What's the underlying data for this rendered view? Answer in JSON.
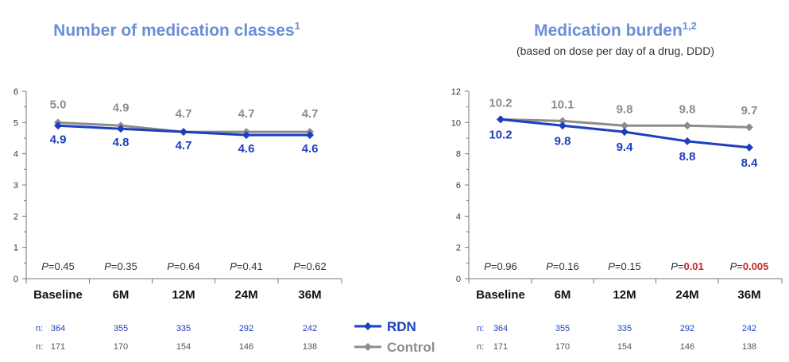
{
  "chart_data": [
    {
      "type": "line",
      "title": "Number of medication classes",
      "title_superscript": "1",
      "subtitle": "",
      "categories": [
        "Baseline",
        "6M",
        "12M",
        "24M",
        "36M"
      ],
      "ylim": [
        0,
        6
      ],
      "yticks": [
        "0",
        "1",
        "2",
        "3",
        "4",
        "5",
        "6"
      ],
      "series": [
        {
          "name": "RDN",
          "values": [
            4.9,
            4.8,
            4.7,
            4.6,
            4.6
          ],
          "labels": [
            "4.9",
            "4.8",
            "4.7",
            "4.6",
            "4.6"
          ]
        },
        {
          "name": "Control",
          "values": [
            5.0,
            4.9,
            4.7,
            4.7,
            4.7
          ],
          "labels": [
            "5.0",
            "4.9",
            "4.7",
            "4.7",
            "4.7"
          ]
        }
      ],
      "p_values": [
        {
          "prefix": "P",
          "value": "=0.45",
          "significant": false
        },
        {
          "prefix": "P",
          "value": "=0.35",
          "significant": false
        },
        {
          "prefix": "P",
          "value": "=0.64",
          "significant": false
        },
        {
          "prefix": "P",
          "value": "=0.41",
          "significant": false
        },
        {
          "prefix": "P",
          "value": "=0.62",
          "significant": false
        }
      ],
      "n_rdn": [
        "364",
        "355",
        "335",
        "292",
        "242"
      ],
      "n_control": [
        "171",
        "170",
        "154",
        "146",
        "138"
      ]
    },
    {
      "type": "line",
      "title": "Medication burden",
      "title_superscript": "1,2",
      "subtitle": "(based on dose per day of a drug, DDD)",
      "categories": [
        "Baseline",
        "6M",
        "12M",
        "24M",
        "36M"
      ],
      "ylim": [
        0,
        12
      ],
      "yticks": [
        "0",
        "2",
        "4",
        "6",
        "8",
        "10",
        "12"
      ],
      "series": [
        {
          "name": "RDN",
          "values": [
            10.2,
            9.8,
            9.4,
            8.8,
            8.4
          ],
          "labels": [
            "10.2",
            "9.8",
            "9.4",
            "8.8",
            "8.4"
          ]
        },
        {
          "name": "Control",
          "values": [
            10.2,
            10.1,
            9.8,
            9.8,
            9.7
          ],
          "labels": [
            "10.2",
            "10.1",
            "9.8",
            "9.8",
            "9.7"
          ]
        }
      ],
      "p_values": [
        {
          "prefix": "P",
          "value": "=0.96",
          "significant": false
        },
        {
          "prefix": "P",
          "value": "=0.16",
          "significant": false
        },
        {
          "prefix": "P",
          "value": "=0.15",
          "significant": false
        },
        {
          "prefix": "P",
          "value": "=",
          "sig_part": "0.01",
          "significant": true
        },
        {
          "prefix": "P",
          "value": "=",
          "sig_part": "0.005",
          "significant": true
        }
      ],
      "n_rdn": [
        "364",
        "355",
        "335",
        "292",
        "242"
      ],
      "n_control": [
        "171",
        "170",
        "154",
        "146",
        "138"
      ]
    }
  ],
  "n_prefix": "n:",
  "legend": {
    "rdn": "RDN",
    "control": "Control"
  },
  "colors": {
    "rdn": "#1c3fc0",
    "control": "#8c8c8c",
    "title": "#6b8fd6",
    "significant": "#c0282c",
    "axis": "#777777"
  }
}
